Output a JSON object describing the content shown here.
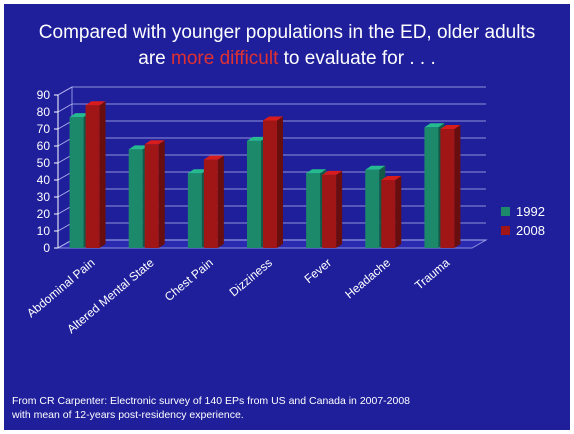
{
  "slide": {
    "title_line1": "Compared with younger populations in the ED, older adults",
    "title_line2_pre": "are ",
    "title_line2_accent": "more difficult",
    "title_line2_post": " to evaluate for . . .",
    "footnote_line1": "From CR Carpenter: Electronic survey of 140 EPs from US and Canada in 2007-2008",
    "footnote_line2": "with mean of 12-years post-residency experience."
  },
  "colors": {
    "background": "#1f1f9c",
    "accent": "#e03030",
    "series_1992": "#1c8a6a",
    "series_2008": "#a01515"
  },
  "chart_data": {
    "type": "bar",
    "categories": [
      "Abdominal Pain",
      "Altered Mental State",
      "Chest Pain",
      "Dizziness",
      "Fever",
      "Headache",
      "Trauma"
    ],
    "series": [
      {
        "name": "1992",
        "values": [
          77,
          58,
          44,
          63,
          44,
          46,
          71
        ]
      },
      {
        "name": "2008",
        "values": [
          84,
          61,
          52,
          75,
          43,
          40,
          70
        ]
      }
    ],
    "yticks": [
      0,
      10,
      20,
      30,
      40,
      50,
      60,
      70,
      80,
      90
    ],
    "ylim": [
      0,
      90
    ],
    "grid": true,
    "legend": "right",
    "style": "3d-bars"
  }
}
